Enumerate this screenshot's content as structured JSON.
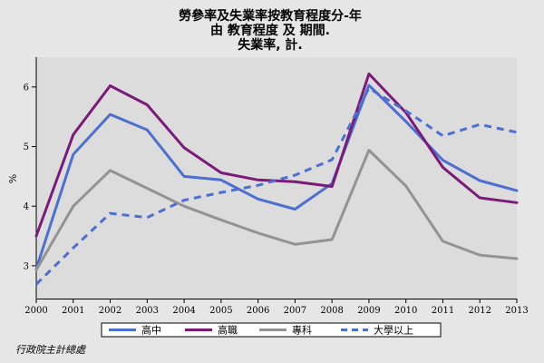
{
  "chart_data": {
    "type": "line",
    "title": [
      "勞參率及失業率按教育程度分-年",
      "由 教育程度 及 期間.",
      "失業率, 計."
    ],
    "xlabel": "",
    "ylabel": "%",
    "x": [
      "2000",
      "2001",
      "2002",
      "2003",
      "2004",
      "2005",
      "2006",
      "2007",
      "2008",
      "2009",
      "2010",
      "2011",
      "2012",
      "2013"
    ],
    "yticks": [
      3,
      4,
      5,
      6
    ],
    "ylim": [
      2.45,
      6.5
    ],
    "grid": false,
    "legend_position": "bottom",
    "series": [
      {
        "name": "高中",
        "color": "#4c6fd0",
        "dash": "solid",
        "values": [
          2.95,
          4.87,
          5.54,
          5.28,
          4.5,
          4.44,
          4.12,
          3.95,
          4.38,
          6.03,
          5.42,
          4.77,
          4.43,
          4.26
        ]
      },
      {
        "name": "高職",
        "color": "#7b1a78",
        "dash": "solid",
        "values": [
          3.5,
          5.2,
          6.02,
          5.7,
          4.98,
          4.56,
          4.44,
          4.41,
          4.33,
          6.22,
          5.57,
          4.65,
          4.14,
          4.06
        ]
      },
      {
        "name": "專科",
        "color": "#939393",
        "dash": "solid",
        "values": [
          2.93,
          4.0,
          4.6,
          4.3,
          4.0,
          3.77,
          3.55,
          3.36,
          3.44,
          4.94,
          4.34,
          3.41,
          3.18,
          3.12
        ]
      },
      {
        "name": "大學以上",
        "color": "#4c6fd0",
        "dash": "dashed",
        "values": [
          2.69,
          3.3,
          3.88,
          3.81,
          4.1,
          4.23,
          4.35,
          4.52,
          4.78,
          5.98,
          5.6,
          5.18,
          5.37,
          5.24
        ]
      }
    ]
  },
  "footer": {
    "source": "行政院主計總處"
  }
}
